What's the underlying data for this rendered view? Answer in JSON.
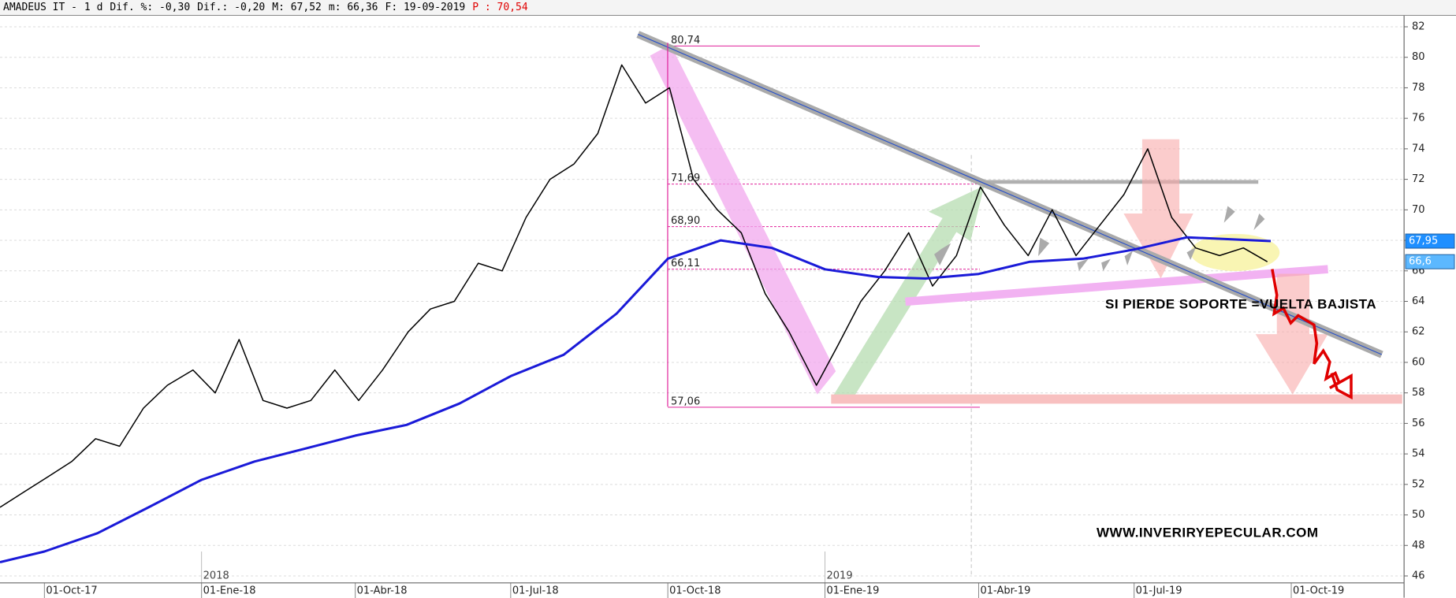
{
  "header": {
    "items": [
      "AMADEUS IT -",
      "1 d",
      "Dif. %: -0,30",
      "Dif.: -0,20",
      "M: 67,52",
      "m: 66,36",
      "F: 19-09-2019",
      "P : 70,54"
    ]
  },
  "chart_data": {
    "type": "line",
    "xlim": [
      "2017-09-05",
      "2019-12-06"
    ],
    "ylim": [
      46,
      82
    ],
    "yticks": [
      46,
      48,
      50,
      52,
      54,
      56,
      58,
      60,
      62,
      64,
      66,
      68,
      70,
      72,
      74,
      76,
      78,
      80,
      82
    ],
    "xticks": [
      {
        "value": "2017-10-01",
        "label": "01-Oct-17"
      },
      {
        "value": "2018-01-01",
        "label": "01-Ene-18"
      },
      {
        "value": "2018-04-01",
        "label": "01-Abr-18"
      },
      {
        "value": "2018-07-01",
        "label": "01-Jul-18"
      },
      {
        "value": "2018-10-01",
        "label": "01-Oct-18"
      },
      {
        "value": "2019-01-01",
        "label": "01-Ene-19"
      },
      {
        "value": "2019-04-01",
        "label": "01-Abr-19"
      },
      {
        "value": "2019-07-01",
        "label": "01-Jul-19"
      },
      {
        "value": "2019-10-01",
        "label": "01-Oct-19"
      }
    ],
    "year_labels": [
      {
        "value": "2018-01-01",
        "label": "2018"
      },
      {
        "value": "2019-01-01",
        "label": "2019"
      }
    ],
    "grid": true,
    "series": [
      {
        "color": "#000000",
        "x": [
          "2017-09-05",
          "2017-09-19",
          "2017-10-03",
          "2017-10-17",
          "2017-10-31",
          "2017-11-14",
          "2017-11-28",
          "2017-12-12",
          "2017-12-27",
          "2018-01-09",
          "2018-01-23",
          "2018-02-06",
          "2018-02-20",
          "2018-03-06",
          "2018-03-20",
          "2018-04-03",
          "2018-04-17",
          "2018-05-02",
          "2018-05-15",
          "2018-05-29",
          "2018-06-12",
          "2018-06-26",
          "2018-07-10",
          "2018-07-24",
          "2018-08-07",
          "2018-08-21",
          "2018-09-04",
          "2018-09-18",
          "2018-10-02",
          "2018-10-16",
          "2018-10-30",
          "2018-11-13",
          "2018-11-27",
          "2018-12-11",
          "2018-12-27",
          "2019-01-08",
          "2019-01-22",
          "2019-02-05",
          "2019-02-19",
          "2019-03-05",
          "2019-03-19",
          "2019-04-02",
          "2019-04-16",
          "2019-04-30",
          "2019-05-14",
          "2019-05-28",
          "2019-06-11",
          "2019-06-25",
          "2019-07-09",
          "2019-07-23",
          "2019-08-06",
          "2019-08-20",
          "2019-09-03",
          "2019-09-17"
        ],
        "values": [
          50.5,
          51.5,
          52.5,
          53.5,
          55,
          54.5,
          57,
          58.5,
          59.5,
          58,
          61.5,
          57.5,
          57,
          57.5,
          59.5,
          57.5,
          59.5,
          62,
          63.5,
          64,
          66.5,
          66,
          69.5,
          72,
          73,
          75,
          79.5,
          77,
          78,
          72,
          70,
          68.5,
          64.5,
          62,
          58.5,
          61,
          64,
          66,
          68.5,
          65,
          67,
          71.5,
          69,
          67,
          70,
          67,
          69,
          71,
          74,
          69.5,
          67.5,
          67,
          67.5,
          66.6
        ]
      },
      {
        "color": "#1a1ad8",
        "x": [
          "2017-09-05",
          "2017-10-01",
          "2017-11-01",
          "2017-12-01",
          "2018-01-01",
          "2018-02-01",
          "2018-03-01",
          "2018-04-01",
          "2018-05-01",
          "2018-06-01",
          "2018-07-01",
          "2018-08-01",
          "2018-09-01",
          "2018-10-01",
          "2018-11-01",
          "2018-12-01",
          "2019-01-01",
          "2019-02-01",
          "2019-03-01",
          "2019-04-01",
          "2019-05-01",
          "2019-06-01",
          "2019-07-01",
          "2019-08-01",
          "2019-09-19"
        ],
        "values": [
          46.9,
          47.6,
          48.8,
          50.5,
          52.3,
          53.5,
          54.3,
          55.2,
          55.9,
          57.3,
          59.1,
          60.5,
          63.2,
          66.8,
          68,
          67.5,
          66.1,
          65.6,
          65.5,
          65.8,
          66.6,
          66.8,
          67.4,
          68.2,
          67.95
        ]
      }
    ],
    "levels": [
      {
        "value": 80.74,
        "label": "80,74"
      },
      {
        "value": 71.69,
        "label": "71,69"
      },
      {
        "value": 68.9,
        "label": "68,90"
      },
      {
        "value": 66.11,
        "label": "66,11"
      },
      {
        "value": 57.06,
        "label": "57,06"
      }
    ],
    "last_labels": [
      {
        "value": 67.95,
        "label": "67,95",
        "color": "#1e8fff"
      },
      {
        "value": 66.6,
        "label": "66,6",
        "color": "#5cb8ff"
      }
    ],
    "annotations": [
      "SI PIERDE SOPORTE =VUELTA BAJISTA",
      "WWW.INVERIRYEPECULAR.COM"
    ]
  }
}
